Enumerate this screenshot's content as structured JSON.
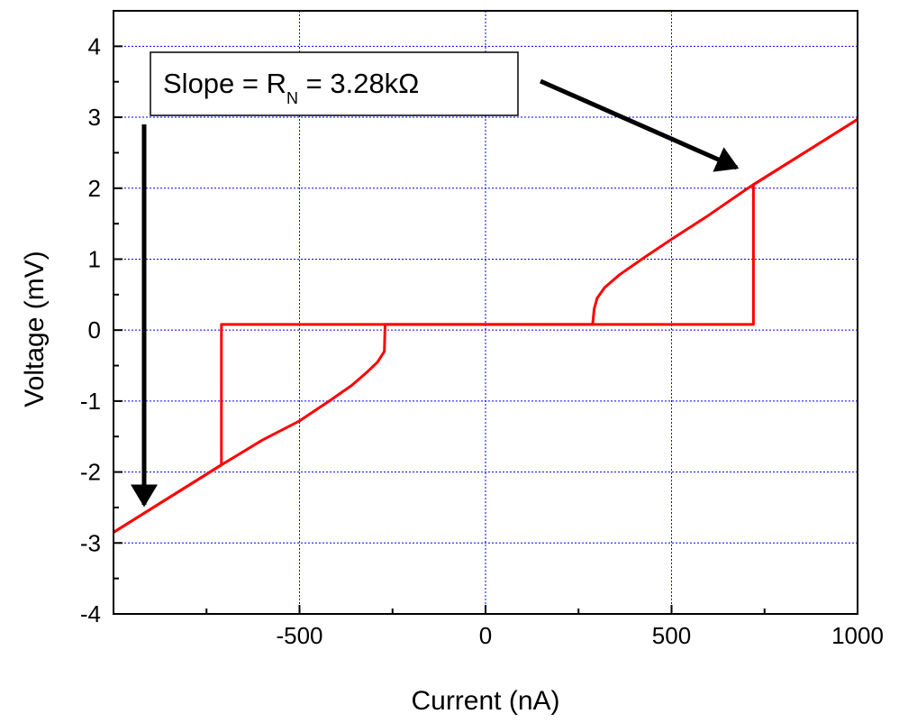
{
  "chart_data": {
    "type": "line",
    "xlabel": "Current (nA)",
    "ylabel": "Voltage (mV)",
    "xlim": [
      -1000,
      1000
    ],
    "ylim": [
      -4,
      4.5
    ],
    "x_ticks": [
      -500,
      0,
      500,
      1000
    ],
    "x_tick_labels": [
      "-500",
      "0",
      "500",
      "1000"
    ],
    "y_ticks": [
      -4,
      -3,
      -2,
      -1,
      0,
      1,
      2,
      3,
      4
    ],
    "y_tick_labels": [
      "-4",
      "-3",
      "-2",
      "-1",
      "0",
      "1",
      "2",
      "3",
      "4"
    ],
    "grid": true,
    "grid_color": "#0000ff",
    "line_color": "#ff0000",
    "annotation": {
      "text_main": "Slope = R",
      "text_sub": "N",
      "text_tail": " = 3.28kΩ"
    },
    "series": [
      {
        "points": [
          [
            -1000,
            -2.85
          ],
          [
            -710,
            -1.9
          ],
          [
            -710,
            0.08
          ],
          [
            720,
            0.08
          ],
          [
            720,
            2.05
          ],
          [
            1000,
            2.97
          ]
        ]
      },
      {
        "points": [
          [
            1000,
            2.97
          ],
          [
            720,
            2.05
          ],
          [
            700,
            1.98
          ],
          [
            600,
            1.62
          ],
          [
            500,
            1.28
          ],
          [
            420,
            1.0
          ],
          [
            360,
            0.78
          ],
          [
            320,
            0.6
          ],
          [
            300,
            0.45
          ],
          [
            292,
            0.3
          ],
          [
            288,
            0.08
          ],
          [
            -270,
            0.08
          ],
          [
            -272,
            -0.3
          ],
          [
            -290,
            -0.45
          ],
          [
            -320,
            -0.6
          ],
          [
            -360,
            -0.78
          ],
          [
            -420,
            -1.0
          ],
          [
            -500,
            -1.28
          ],
          [
            -600,
            -1.55
          ],
          [
            -710,
            -1.9
          ],
          [
            -1000,
            -2.85
          ]
        ]
      }
    ]
  }
}
